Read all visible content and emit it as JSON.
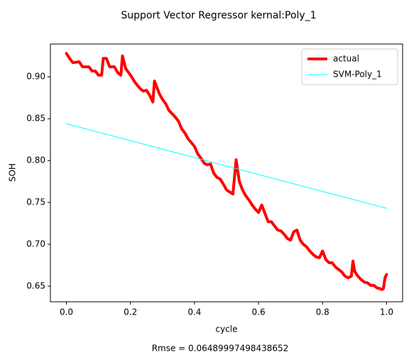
{
  "chart_data": {
    "type": "line",
    "title": "Support Vector Regressor kernal:Poly_1",
    "x_label": "cycle",
    "y_label": "SOH",
    "annotation": "Rmse = 0.06489997498438652",
    "xlim": [
      -0.05,
      1.05
    ],
    "ylim": [
      0.6314,
      0.9392
    ],
    "xticks": [
      {
        "value": 0,
        "label": "0.0"
      },
      0.2,
      0.4,
      0.6,
      0.8,
      {
        "value": 1,
        "label": "1.0"
      }
    ],
    "yticks": [
      0.65,
      {
        "value": 0.7,
        "label": "0.70"
      },
      0.75,
      {
        "value": 0.8,
        "label": "0.80"
      },
      0.85,
      {
        "value": 0.9,
        "label": "0.90"
      }
    ],
    "legend": "upper right",
    "series": [
      {
        "name": "actual",
        "color": "#ff0000",
        "width": 4,
        "x": [
          0,
          0.01,
          0.02,
          0.04,
          0.05,
          0.07,
          0.08,
          0.09,
          0.1,
          0.11,
          0.115,
          0.125,
          0.135,
          0.15,
          0.16,
          0.17,
          0.175,
          0.185,
          0.2,
          0.215,
          0.23,
          0.24,
          0.25,
          0.26,
          0.27,
          0.275,
          0.29,
          0.3,
          0.31,
          0.32,
          0.34,
          0.35,
          0.36,
          0.37,
          0.38,
          0.4,
          0.41,
          0.42,
          0.43,
          0.44,
          0.45,
          0.46,
          0.47,
          0.48,
          0.49,
          0.5,
          0.52,
          0.53,
          0.54,
          0.55,
          0.56,
          0.57,
          0.58,
          0.59,
          0.6,
          0.61,
          0.62,
          0.63,
          0.64,
          0.65,
          0.66,
          0.67,
          0.68,
          0.69,
          0.7,
          0.71,
          0.72,
          0.73,
          0.74,
          0.75,
          0.76,
          0.77,
          0.78,
          0.79,
          0.8,
          0.81,
          0.82,
          0.83,
          0.84,
          0.85,
          0.86,
          0.87,
          0.88,
          0.89,
          0.895,
          0.9,
          0.91,
          0.92,
          0.93,
          0.94,
          0.95,
          0.96,
          0.97,
          0.98,
          0.985,
          0.99,
          0.995,
          1
        ],
        "values": [
          0.928,
          0.922,
          0.917,
          0.918,
          0.912,
          0.912,
          0.907,
          0.907,
          0.902,
          0.902,
          0.922,
          0.922,
          0.912,
          0.912,
          0.905,
          0.902,
          0.925,
          0.91,
          0.902,
          0.893,
          0.886,
          0.883,
          0.884,
          0.878,
          0.87,
          0.895,
          0.88,
          0.873,
          0.868,
          0.86,
          0.852,
          0.847,
          0.838,
          0.833,
          0.826,
          0.817,
          0.808,
          0.803,
          0.797,
          0.795,
          0.796,
          0.785,
          0.78,
          0.778,
          0.772,
          0.765,
          0.76,
          0.801,
          0.775,
          0.765,
          0.758,
          0.753,
          0.747,
          0.742,
          0.738,
          0.747,
          0.737,
          0.727,
          0.727,
          0.722,
          0.717,
          0.716,
          0.712,
          0.707,
          0.705,
          0.715,
          0.717,
          0.705,
          0.7,
          0.697,
          0.692,
          0.688,
          0.685,
          0.684,
          0.692,
          0.682,
          0.678,
          0.678,
          0.673,
          0.67,
          0.667,
          0.662,
          0.66,
          0.662,
          0.68,
          0.668,
          0.662,
          0.658,
          0.655,
          0.654,
          0.651,
          0.651,
          0.648,
          0.647,
          0.646,
          0.647,
          0.66,
          0.664
        ]
      },
      {
        "name": "SVM-Poly_1",
        "color": "#00ffff",
        "width": 1,
        "x": [
          0,
          1
        ],
        "values": [
          0.844,
          0.743
        ]
      }
    ]
  }
}
